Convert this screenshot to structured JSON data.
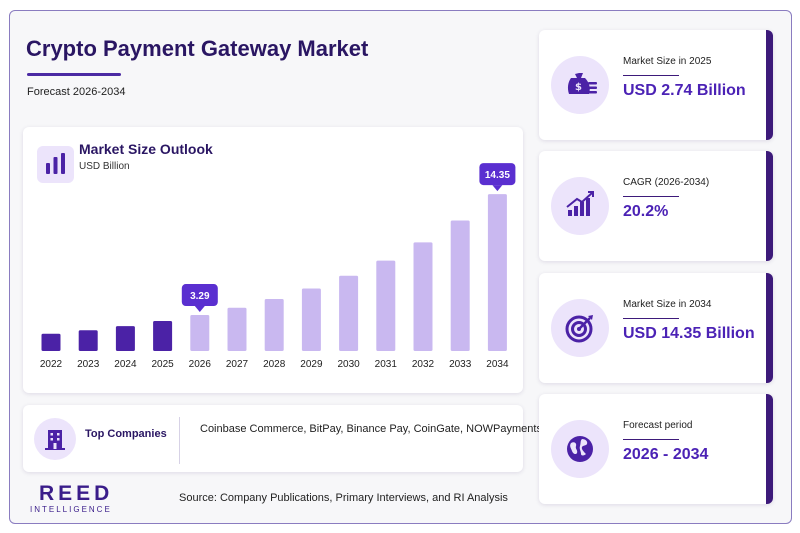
{
  "header": {
    "title": "Crypto Payment Gateway Market",
    "subtitle": "Forecast 2026-2034"
  },
  "chart_panel": {
    "title": "Market Size Outlook",
    "unit": "USD Billion",
    "icon": "bar-chart-icon"
  },
  "chart_data": {
    "type": "bar",
    "title": "Market Size Outlook",
    "ylabel": "USD Billion",
    "categories": [
      "2022",
      "2023",
      "2024",
      "2025",
      "2026",
      "2027",
      "2028",
      "2029",
      "2030",
      "2031",
      "2032",
      "2033",
      "2034"
    ],
    "values": [
      1.58,
      1.9,
      2.28,
      2.74,
      3.29,
      3.96,
      4.76,
      5.72,
      6.88,
      8.27,
      9.94,
      11.94,
      14.35
    ],
    "ylim": [
      0,
      15
    ],
    "grid": false,
    "highlighted_labels": [
      {
        "category": "2026",
        "label": "3.29"
      },
      {
        "category": "2034",
        "label": "14.35"
      }
    ],
    "colors": {
      "historical": "#4b22a6",
      "forecast": "#c9b8f0"
    }
  },
  "companies": {
    "label": "Top Companies",
    "list": "Coinbase Commerce, BitPay, Binance Pay, CoinGate, NOWPayments",
    "icon": "building-icon"
  },
  "stats": [
    {
      "label": "Market Size in 2025",
      "value": "USD 2.74 Billion",
      "icon": "money-bag-icon"
    },
    {
      "label": "CAGR (2026-2034)",
      "value": "20.2%",
      "icon": "growth-chart-icon"
    },
    {
      "label": "Market Size in 2034",
      "value": "USD 14.35 Billion",
      "icon": "target-icon"
    },
    {
      "label": "Forecast period",
      "value": "2026 - 2034",
      "icon": "globe-icon"
    }
  ],
  "brand": {
    "name": "REED",
    "tagline": "INTELLIGENCE"
  },
  "footer": {
    "source": "Source: Company Publications, Primary Interviews, and RI Analysis"
  },
  "colors": {
    "accent": "#4b22b5",
    "dark": "#2a1663",
    "light": "#ece4fb"
  }
}
